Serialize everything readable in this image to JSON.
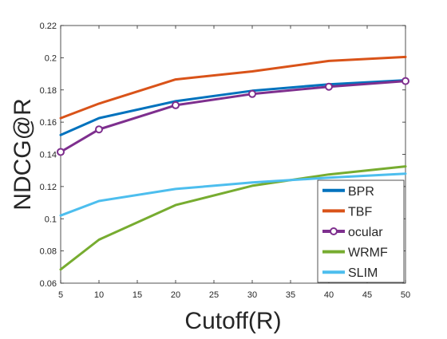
{
  "chart_data": {
    "type": "line",
    "xlabel": "Cutoff(R)",
    "ylabel": "NDCG@R",
    "xlim": [
      5,
      50
    ],
    "ylim": [
      0.06,
      0.22
    ],
    "xticks": [
      5,
      10,
      15,
      20,
      25,
      30,
      35,
      40,
      45,
      50
    ],
    "yticks": [
      0.06,
      0.08,
      0.1,
      0.12,
      0.14,
      0.16,
      0.18,
      0.2,
      0.22
    ],
    "xtick_labels": [
      "5",
      "10",
      "15",
      "20",
      "25",
      "30",
      "35",
      "40",
      "45",
      "50"
    ],
    "ytick_labels": [
      "0.06",
      "0.08",
      "0.1",
      "0.12",
      "0.14",
      "0.16",
      "0.18",
      "0.2",
      "0.22"
    ],
    "grid": false,
    "legend_position": "bottom-right",
    "x": [
      5,
      10,
      20,
      30,
      40,
      50
    ],
    "series": [
      {
        "name": "BPR",
        "color": "#0072BD",
        "marker": "none",
        "values": [
          0.152,
          0.1625,
          0.173,
          0.1795,
          0.1835,
          0.186
        ]
      },
      {
        "name": "TBF",
        "color": "#D95319",
        "marker": "none",
        "values": [
          0.1625,
          0.1715,
          0.1865,
          0.1915,
          0.198,
          0.2005
        ]
      },
      {
        "name": "ocular",
        "color": "#7E2F8E",
        "marker": "circle",
        "values": [
          0.1415,
          0.1555,
          0.1705,
          0.1775,
          0.182,
          0.1855
        ]
      },
      {
        "name": "WRMF",
        "color": "#77AC30",
        "marker": "none",
        "values": [
          0.0685,
          0.087,
          0.1085,
          0.1205,
          0.1275,
          0.1325
        ]
      },
      {
        "name": "SLIM",
        "color": "#4DBEEE",
        "marker": "none",
        "values": [
          0.102,
          0.111,
          0.1185,
          0.1225,
          0.1255,
          0.128
        ]
      }
    ]
  }
}
